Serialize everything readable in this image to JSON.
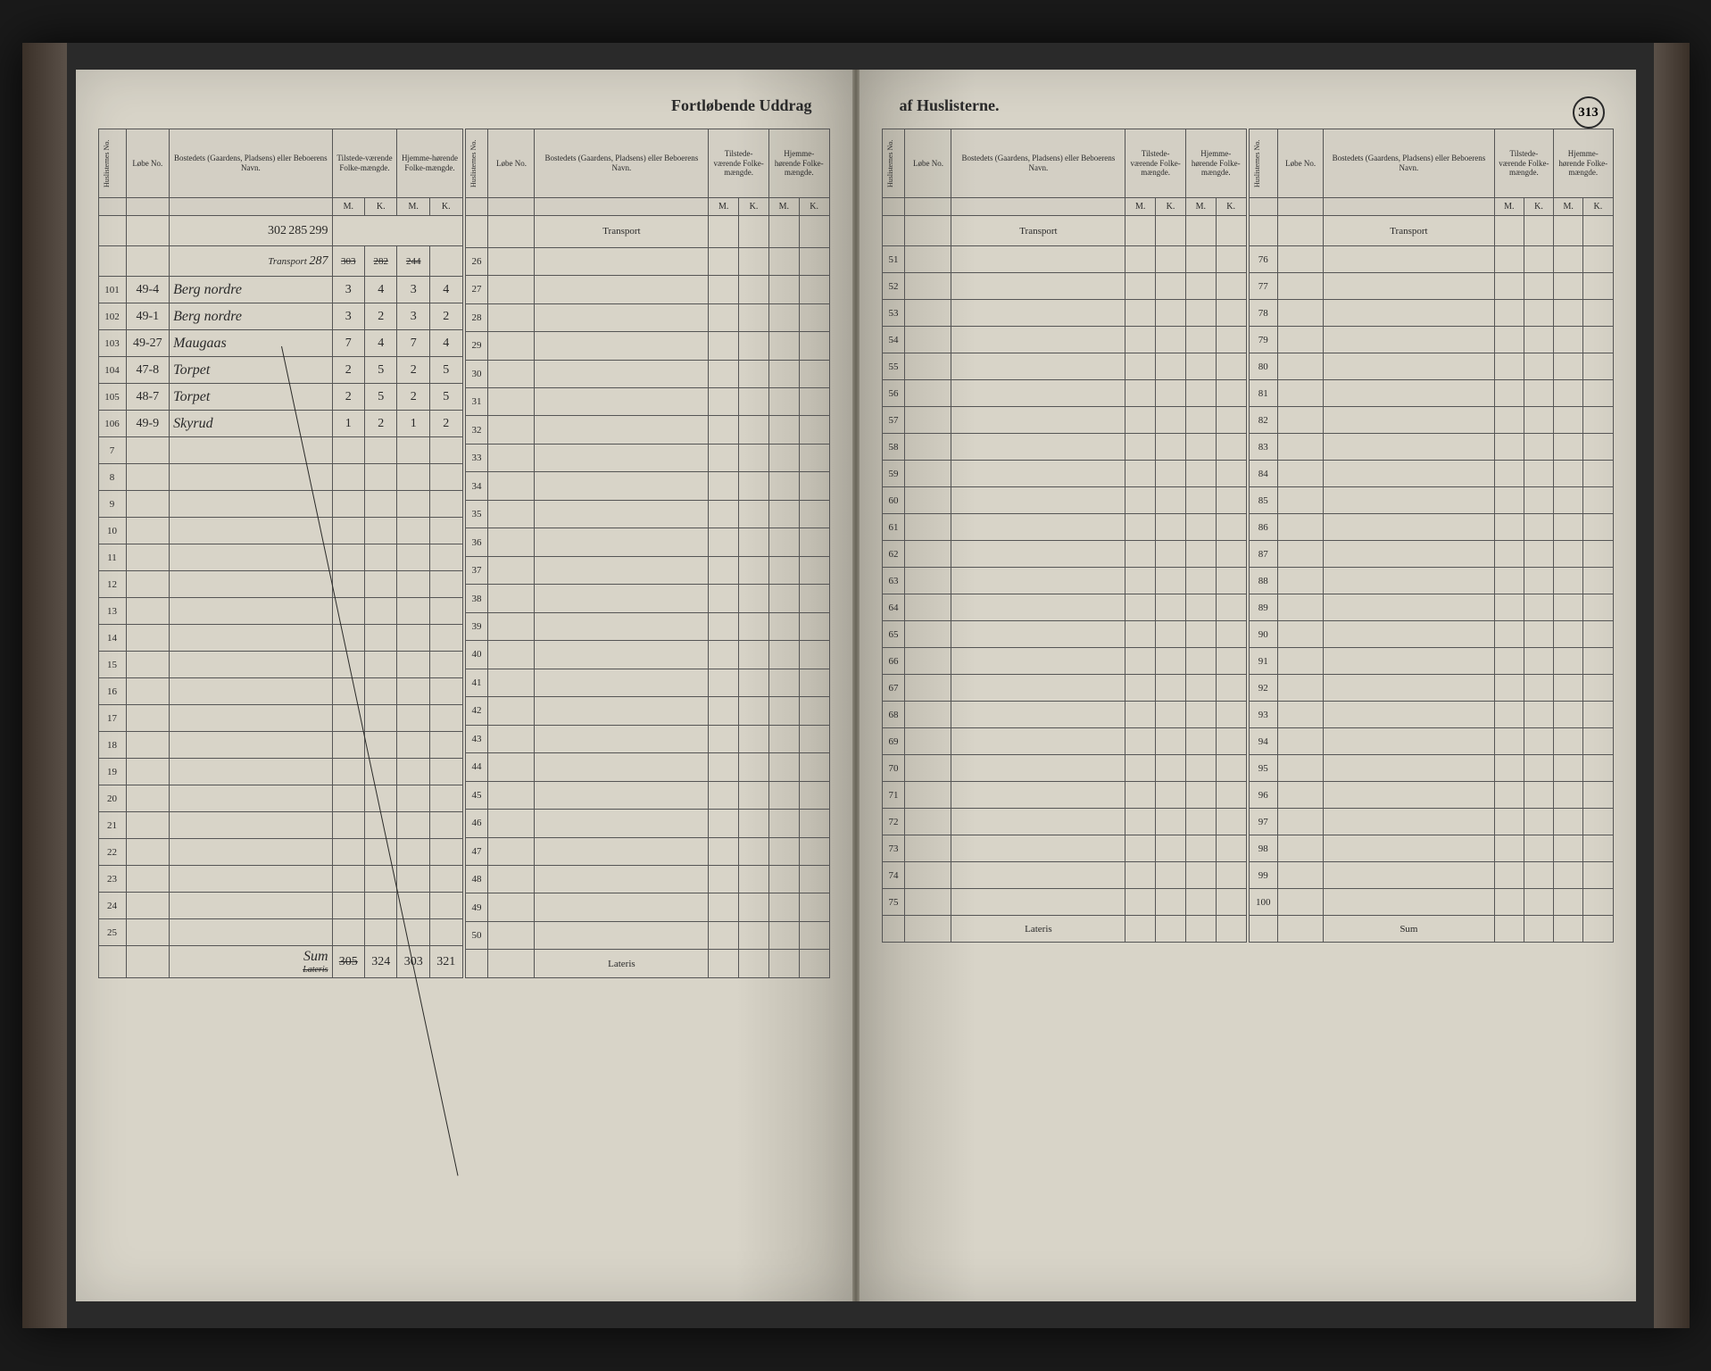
{
  "title_left": "Fortløbende Uddrag",
  "title_right": "af Huslisterne.",
  "page_number": "313",
  "headers": {
    "huslisternes": "Huslisternes No.",
    "lobe_no": "Løbe No.",
    "bosted": "Bostedets (Gaardens, Pladsens) eller Beboerens Navn.",
    "tilstede": "Tilstede-værende Folke-mængde.",
    "hjemme": "Hjemme-hørende Folke-mængde.",
    "m": "M.",
    "k": "K."
  },
  "transport_label": "Transport",
  "lateris_label": "Lateris",
  "sum_label": "Sum",
  "left_page": {
    "transport_corrections": {
      "tm_above": "302",
      "tk_above": "285",
      "hm_above": "299"
    },
    "transport_row": {
      "label": "Transport",
      "lobe": "287",
      "tm_struck": "303",
      "tk_struck": "282",
      "hm_struck": "244"
    },
    "rows1": [
      {
        "n": "101",
        "lobe": "49-4",
        "name": "Berg nordre",
        "tm": "3",
        "tk": "4",
        "hm": "3",
        "hk": "4"
      },
      {
        "n": "102",
        "lobe": "49-1",
        "name": "Berg nordre",
        "tm": "3",
        "tk": "2",
        "hm": "3",
        "hk": "2"
      },
      {
        "n": "103",
        "lobe": "49-27",
        "name": "Maugaas",
        "tm": "7",
        "tk": "4",
        "hm": "7",
        "hk": "4"
      },
      {
        "n": "104",
        "lobe": "47-8",
        "name": "Torpet",
        "tm": "2",
        "tk": "5",
        "hm": "2",
        "hk": "5"
      },
      {
        "n": "105",
        "lobe": "48-7",
        "name": "Torpet",
        "tm": "2",
        "tk": "5",
        "hm": "2",
        "hk": "5"
      },
      {
        "n": "106",
        "lobe": "49-9",
        "name": "Skyrud",
        "tm": "1",
        "tk": "2",
        "hm": "1",
        "hk": "2"
      },
      {
        "n": "7"
      },
      {
        "n": "8"
      },
      {
        "n": "9"
      },
      {
        "n": "10"
      },
      {
        "n": "11"
      },
      {
        "n": "12"
      },
      {
        "n": "13"
      },
      {
        "n": "14"
      },
      {
        "n": "15"
      },
      {
        "n": "16"
      },
      {
        "n": "17"
      },
      {
        "n": "18"
      },
      {
        "n": "19"
      },
      {
        "n": "20"
      },
      {
        "n": "21"
      },
      {
        "n": "22"
      },
      {
        "n": "23"
      },
      {
        "n": "24"
      },
      {
        "n": "25"
      }
    ],
    "rows2": [
      {
        "n": "26"
      },
      {
        "n": "27"
      },
      {
        "n": "28"
      },
      {
        "n": "29"
      },
      {
        "n": "30"
      },
      {
        "n": "31"
      },
      {
        "n": "32"
      },
      {
        "n": "33"
      },
      {
        "n": "34"
      },
      {
        "n": "35"
      },
      {
        "n": "36"
      },
      {
        "n": "37"
      },
      {
        "n": "38"
      },
      {
        "n": "39"
      },
      {
        "n": "40"
      },
      {
        "n": "41"
      },
      {
        "n": "42"
      },
      {
        "n": "43"
      },
      {
        "n": "44"
      },
      {
        "n": "45"
      },
      {
        "n": "46"
      },
      {
        "n": "47"
      },
      {
        "n": "48"
      },
      {
        "n": "49"
      },
      {
        "n": "50"
      }
    ],
    "bottom": {
      "label": "Sum",
      "tm_struck": "305",
      "corrections": [
        "324",
        "303",
        "321"
      ]
    }
  },
  "right_page": {
    "rows1": [
      {
        "n": "51"
      },
      {
        "n": "52"
      },
      {
        "n": "53"
      },
      {
        "n": "54"
      },
      {
        "n": "55"
      },
      {
        "n": "56"
      },
      {
        "n": "57"
      },
      {
        "n": "58"
      },
      {
        "n": "59"
      },
      {
        "n": "60"
      },
      {
        "n": "61"
      },
      {
        "n": "62"
      },
      {
        "n": "63"
      },
      {
        "n": "64"
      },
      {
        "n": "65"
      },
      {
        "n": "66"
      },
      {
        "n": "67"
      },
      {
        "n": "68"
      },
      {
        "n": "69"
      },
      {
        "n": "70"
      },
      {
        "n": "71"
      },
      {
        "n": "72"
      },
      {
        "n": "73"
      },
      {
        "n": "74"
      },
      {
        "n": "75"
      }
    ],
    "rows2": [
      {
        "n": "76"
      },
      {
        "n": "77"
      },
      {
        "n": "78"
      },
      {
        "n": "79"
      },
      {
        "n": "80"
      },
      {
        "n": "81"
      },
      {
        "n": "82"
      },
      {
        "n": "83"
      },
      {
        "n": "84"
      },
      {
        "n": "85"
      },
      {
        "n": "86"
      },
      {
        "n": "87"
      },
      {
        "n": "88"
      },
      {
        "n": "89"
      },
      {
        "n": "90"
      },
      {
        "n": "91"
      },
      {
        "n": "92"
      },
      {
        "n": "93"
      },
      {
        "n": "94"
      },
      {
        "n": "95"
      },
      {
        "n": "96"
      },
      {
        "n": "97"
      },
      {
        "n": "98"
      },
      {
        "n": "99"
      },
      {
        "n": "100"
      }
    ]
  },
  "colors": {
    "page_bg": "#d8d4c8",
    "ink": "#2a2a28",
    "border": "#555555",
    "book_bg": "#1a1a1a"
  }
}
